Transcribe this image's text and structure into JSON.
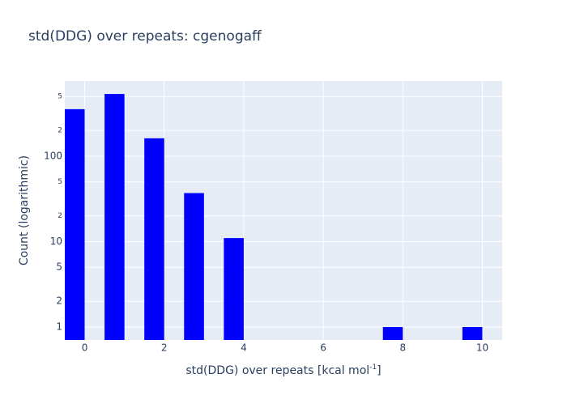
{
  "chart_data": {
    "type": "bar",
    "title": "std(DDG) over repeats: cgenogaff",
    "xlabel": {
      "text": "std(DDG) over repeats [kcal mol",
      "superscript": "-1",
      "suffix": "]"
    },
    "ylabel": "Count (logarithmic)",
    "x": [
      0,
      1,
      2,
      3,
      4,
      8,
      10
    ],
    "values": [
      355,
      535,
      162,
      37,
      11,
      1,
      1
    ],
    "color": "#0000ff",
    "xlim": [
      -0.5,
      10.5
    ],
    "xticks": [
      0,
      2,
      4,
      6,
      8,
      10
    ],
    "ylim": [
      0.705,
      760
    ],
    "log_y": true,
    "yticks": [
      1,
      2,
      5,
      10,
      {
        "value": 20,
        "label": "2"
      },
      {
        "value": 50,
        "label": "5"
      },
      100,
      {
        "value": 200,
        "label": "2"
      },
      {
        "value": 500,
        "label": "5"
      }
    ],
    "grid": true
  }
}
